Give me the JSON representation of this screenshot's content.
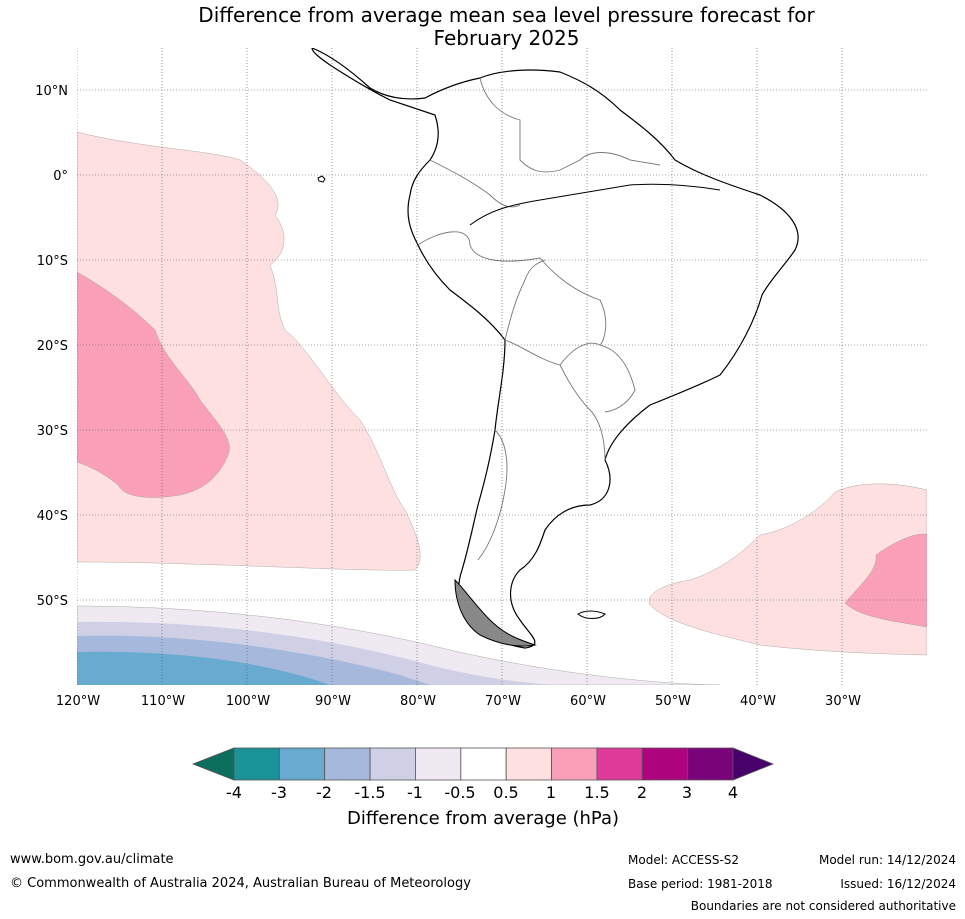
{
  "title_line1": "Difference from average mean sea level pressure forecast for",
  "title_line2": "February 2025",
  "lat_labels": [
    "10°N",
    "0°",
    "10°S",
    "20°S",
    "30°S",
    "40°S",
    "50°S"
  ],
  "lon_labels": [
    "120°W",
    "110°W",
    "100°W",
    "90°W",
    "80°W",
    "70°W",
    "60°W",
    "50°W",
    "40°W",
    "30°W"
  ],
  "colorbar": {
    "ticks": [
      "-4",
      "-3",
      "-2",
      "-1.5",
      "-1",
      "-0.5",
      "0.5",
      "1",
      "1.5",
      "2",
      "3",
      "4"
    ],
    "colors": [
      "#1a9399",
      "#68aad0",
      "#a6b9dc",
      "#cfd0e6",
      "#efe9f1",
      "#ffffff",
      "#fde0df",
      "#f9a0b8",
      "#e03a9b",
      "#ad047e",
      "#7a047a"
    ],
    "under_color": "#0c6e5d",
    "over_color": "#48006a",
    "title": "Difference from average (hPa)"
  },
  "footer": {
    "website": "www.bom.gov.au/climate",
    "copyright": "© Commonwealth of Australia 2024, Australian Bureau of Meteorology",
    "model": "Model: ACCESS-S2",
    "base_period": "Base period: 1981-2018",
    "model_run": "Model run: 14/12/2024",
    "issued": "Issued: 16/12/2024",
    "boundaries": "Boundaries are not considered authoritative"
  }
}
